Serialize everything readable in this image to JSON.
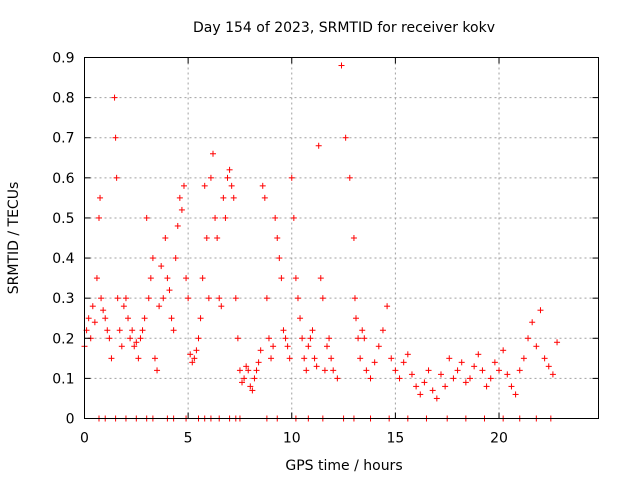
{
  "chart_data": {
    "type": "scatter",
    "title": "Day 154 of 2023, SRMTID for receiver kokv",
    "xlabel": "GPS time / hours",
    "ylabel": "SRMTID / TECUs",
    "xlim": [
      0,
      24.8
    ],
    "ylim": [
      0,
      0.9
    ],
    "xticks": [
      0,
      5,
      10,
      15,
      20
    ],
    "xtick_labels": [
      "0",
      "5",
      "10",
      "15",
      "20"
    ],
    "yticks": [
      0,
      0.1,
      0.2,
      0.3,
      0.4,
      0.5,
      0.6,
      0.7,
      0.8,
      0.9
    ],
    "ytick_labels": [
      "0",
      "0.1",
      "0.2",
      "0.3",
      "0.4",
      "0.5",
      "0.6",
      "0.7",
      "0.8",
      "0.9"
    ],
    "grid": true,
    "marker": "+",
    "color": "#ff0000",
    "series": [
      {
        "name": "SRMTID",
        "x": [
          0.0,
          0.1,
          0.2,
          0.3,
          0.4,
          0.5,
          0.6,
          0.7,
          0.75,
          0.8,
          0.9,
          1.0,
          1.1,
          1.2,
          1.3,
          1.45,
          1.5,
          1.55,
          1.6,
          1.7,
          1.8,
          1.9,
          2.0,
          2.1,
          2.2,
          2.3,
          2.4,
          2.5,
          2.6,
          2.7,
          2.8,
          2.9,
          3.0,
          3.1,
          3.2,
          3.3,
          3.4,
          3.5,
          3.6,
          3.7,
          3.8,
          3.9,
          4.0,
          4.1,
          4.2,
          4.3,
          4.4,
          4.5,
          4.6,
          4.7,
          4.8,
          4.9,
          5.0,
          5.1,
          5.2,
          5.3,
          5.4,
          5.5,
          5.6,
          5.7,
          5.8,
          5.9,
          6.0,
          6.1,
          6.2,
          6.3,
          6.4,
          6.5,
          6.6,
          6.7,
          6.8,
          6.9,
          7.0,
          7.1,
          7.2,
          7.3,
          7.4,
          7.5,
          7.6,
          7.7,
          7.8,
          7.9,
          8.0,
          8.1,
          8.2,
          8.3,
          8.4,
          8.5,
          8.6,
          8.7,
          8.8,
          8.9,
          9.0,
          9.1,
          9.2,
          9.3,
          9.4,
          9.5,
          9.6,
          9.7,
          9.8,
          9.9,
          10.0,
          10.1,
          10.2,
          10.3,
          10.4,
          10.5,
          10.6,
          10.7,
          10.8,
          10.9,
          11.0,
          11.1,
          11.2,
          11.3,
          11.4,
          11.5,
          11.6,
          11.7,
          11.8,
          11.9,
          12.0,
          12.2,
          12.4,
          12.6,
          12.8,
          13.0,
          13.05,
          13.1,
          13.2,
          13.3,
          13.4,
          13.5,
          13.6,
          13.8,
          14.0,
          14.2,
          14.4,
          14.6,
          14.8,
          15.0,
          15.2,
          15.4,
          15.6,
          15.8,
          16.0,
          16.2,
          16.4,
          16.6,
          16.8,
          17.0,
          17.2,
          17.4,
          17.6,
          17.8,
          18.0,
          18.2,
          18.4,
          18.6,
          18.8,
          19.0,
          19.2,
          19.4,
          19.6,
          19.8,
          20.0,
          20.2,
          20.4,
          20.6,
          20.8,
          21.0,
          21.2,
          21.4,
          21.6,
          21.8,
          22.0,
          22.2,
          22.4,
          22.6,
          22.8
        ],
        "y": [
          0.18,
          0.22,
          0.25,
          0.2,
          0.28,
          0.24,
          0.35,
          0.5,
          0.55,
          0.3,
          0.27,
          0.25,
          0.22,
          0.2,
          0.15,
          0.8,
          0.7,
          0.6,
          0.3,
          0.22,
          0.18,
          0.28,
          0.3,
          0.25,
          0.2,
          0.22,
          0.18,
          0.19,
          0.15,
          0.2,
          0.22,
          0.25,
          0.5,
          0.3,
          0.35,
          0.4,
          0.15,
          0.12,
          0.28,
          0.38,
          0.3,
          0.45,
          0.35,
          0.32,
          0.25,
          0.22,
          0.4,
          0.48,
          0.55,
          0.52,
          0.58,
          0.35,
          0.3,
          0.16,
          0.14,
          0.15,
          0.17,
          0.2,
          0.25,
          0.35,
          0.58,
          0.45,
          0.3,
          0.6,
          0.66,
          0.5,
          0.45,
          0.3,
          0.28,
          0.55,
          0.5,
          0.6,
          0.62,
          0.58,
          0.55,
          0.3,
          0.2,
          0.12,
          0.09,
          0.1,
          0.13,
          0.12,
          0.08,
          0.07,
          0.1,
          0.12,
          0.14,
          0.17,
          0.58,
          0.55,
          0.3,
          0.2,
          0.15,
          0.18,
          0.5,
          0.45,
          0.4,
          0.35,
          0.22,
          0.2,
          0.18,
          0.15,
          0.6,
          0.5,
          0.35,
          0.3,
          0.25,
          0.2,
          0.15,
          0.12,
          0.18,
          0.2,
          0.22,
          0.15,
          0.13,
          0.68,
          0.35,
          0.3,
          0.12,
          0.18,
          0.2,
          0.15,
          0.12,
          0.1,
          0.88,
          0.7,
          0.6,
          0.45,
          0.3,
          0.25,
          0.2,
          0.15,
          0.22,
          0.2,
          0.12,
          0.1,
          0.14,
          0.18,
          0.22,
          0.28,
          0.15,
          0.12,
          0.1,
          0.14,
          0.16,
          0.11,
          0.08,
          0.06,
          0.09,
          0.12,
          0.07,
          0.05,
          0.11,
          0.08,
          0.15,
          0.1,
          0.12,
          0.14,
          0.09,
          0.1,
          0.13,
          0.16,
          0.12,
          0.08,
          0.1,
          0.14,
          0.12,
          0.17,
          0.11,
          0.08,
          0.06,
          0.12,
          0.15,
          0.2,
          0.24,
          0.18,
          0.27,
          0.15,
          0.13,
          0.11,
          0.19
        ]
      }
    ],
    "zero_markers_x": [
      0.7,
      1.0,
      1.5,
      2.0,
      2.5,
      3.0,
      3.3,
      4.0,
      4.3,
      4.9,
      5.5,
      5.8,
      6.1,
      6.5,
      7.0,
      7.3,
      7.5,
      8.8,
      9.3,
      10.2,
      10.8,
      11.5,
      12.5,
      13.0,
      13.8,
      14.7,
      15.6,
      16.5,
      17.5,
      18.4,
      19.3,
      20.2,
      21.0,
      21.8,
      22.5
    ]
  }
}
